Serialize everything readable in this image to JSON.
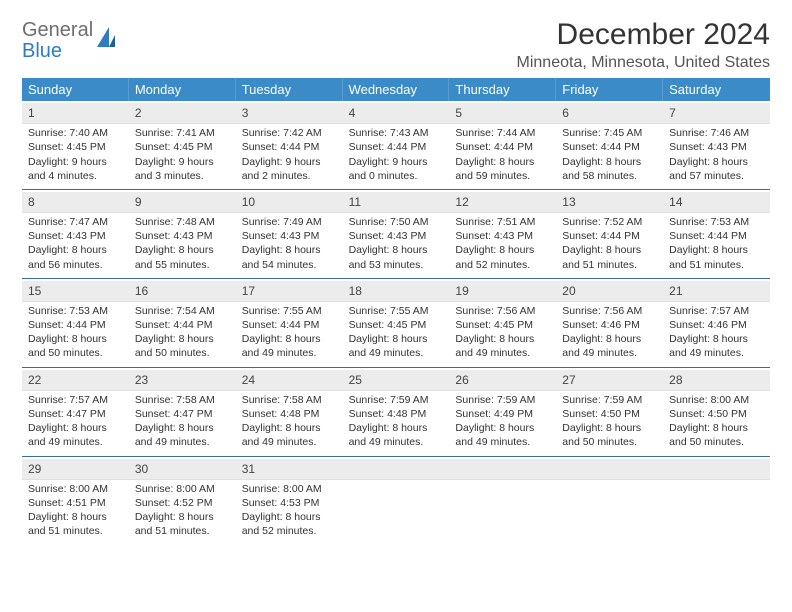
{
  "logo": {
    "line1": "General",
    "line2": "Blue"
  },
  "title": "December 2024",
  "location": "Minneota, Minnesota, United States",
  "dow": [
    "Sunday",
    "Monday",
    "Tuesday",
    "Wednesday",
    "Thursday",
    "Friday",
    "Saturday"
  ],
  "colors": {
    "header_bg": "#3b8bc8",
    "header_text": "#ffffff",
    "daynum_bg": "#ececec",
    "rule": "#3b6e9a",
    "logo_gray": "#6e6e6e",
    "logo_blue": "#2e7cc2"
  },
  "weeks": [
    [
      {
        "n": "1",
        "sr": "7:40 AM",
        "ss": "4:45 PM",
        "dl": "9 hours and 4 minutes."
      },
      {
        "n": "2",
        "sr": "7:41 AM",
        "ss": "4:45 PM",
        "dl": "9 hours and 3 minutes."
      },
      {
        "n": "3",
        "sr": "7:42 AM",
        "ss": "4:44 PM",
        "dl": "9 hours and 2 minutes."
      },
      {
        "n": "4",
        "sr": "7:43 AM",
        "ss": "4:44 PM",
        "dl": "9 hours and 0 minutes."
      },
      {
        "n": "5",
        "sr": "7:44 AM",
        "ss": "4:44 PM",
        "dl": "8 hours and 59 minutes."
      },
      {
        "n": "6",
        "sr": "7:45 AM",
        "ss": "4:44 PM",
        "dl": "8 hours and 58 minutes."
      },
      {
        "n": "7",
        "sr": "7:46 AM",
        "ss": "4:43 PM",
        "dl": "8 hours and 57 minutes."
      }
    ],
    [
      {
        "n": "8",
        "sr": "7:47 AM",
        "ss": "4:43 PM",
        "dl": "8 hours and 56 minutes."
      },
      {
        "n": "9",
        "sr": "7:48 AM",
        "ss": "4:43 PM",
        "dl": "8 hours and 55 minutes."
      },
      {
        "n": "10",
        "sr": "7:49 AM",
        "ss": "4:43 PM",
        "dl": "8 hours and 54 minutes."
      },
      {
        "n": "11",
        "sr": "7:50 AM",
        "ss": "4:43 PM",
        "dl": "8 hours and 53 minutes."
      },
      {
        "n": "12",
        "sr": "7:51 AM",
        "ss": "4:43 PM",
        "dl": "8 hours and 52 minutes."
      },
      {
        "n": "13",
        "sr": "7:52 AM",
        "ss": "4:44 PM",
        "dl": "8 hours and 51 minutes."
      },
      {
        "n": "14",
        "sr": "7:53 AM",
        "ss": "4:44 PM",
        "dl": "8 hours and 51 minutes."
      }
    ],
    [
      {
        "n": "15",
        "sr": "7:53 AM",
        "ss": "4:44 PM",
        "dl": "8 hours and 50 minutes."
      },
      {
        "n": "16",
        "sr": "7:54 AM",
        "ss": "4:44 PM",
        "dl": "8 hours and 50 minutes."
      },
      {
        "n": "17",
        "sr": "7:55 AM",
        "ss": "4:44 PM",
        "dl": "8 hours and 49 minutes."
      },
      {
        "n": "18",
        "sr": "7:55 AM",
        "ss": "4:45 PM",
        "dl": "8 hours and 49 minutes."
      },
      {
        "n": "19",
        "sr": "7:56 AM",
        "ss": "4:45 PM",
        "dl": "8 hours and 49 minutes."
      },
      {
        "n": "20",
        "sr": "7:56 AM",
        "ss": "4:46 PM",
        "dl": "8 hours and 49 minutes."
      },
      {
        "n": "21",
        "sr": "7:57 AM",
        "ss": "4:46 PM",
        "dl": "8 hours and 49 minutes."
      }
    ],
    [
      {
        "n": "22",
        "sr": "7:57 AM",
        "ss": "4:47 PM",
        "dl": "8 hours and 49 minutes."
      },
      {
        "n": "23",
        "sr": "7:58 AM",
        "ss": "4:47 PM",
        "dl": "8 hours and 49 minutes."
      },
      {
        "n": "24",
        "sr": "7:58 AM",
        "ss": "4:48 PM",
        "dl": "8 hours and 49 minutes."
      },
      {
        "n": "25",
        "sr": "7:59 AM",
        "ss": "4:48 PM",
        "dl": "8 hours and 49 minutes."
      },
      {
        "n": "26",
        "sr": "7:59 AM",
        "ss": "4:49 PM",
        "dl": "8 hours and 49 minutes."
      },
      {
        "n": "27",
        "sr": "7:59 AM",
        "ss": "4:50 PM",
        "dl": "8 hours and 50 minutes."
      },
      {
        "n": "28",
        "sr": "8:00 AM",
        "ss": "4:50 PM",
        "dl": "8 hours and 50 minutes."
      }
    ],
    [
      {
        "n": "29",
        "sr": "8:00 AM",
        "ss": "4:51 PM",
        "dl": "8 hours and 51 minutes."
      },
      {
        "n": "30",
        "sr": "8:00 AM",
        "ss": "4:52 PM",
        "dl": "8 hours and 51 minutes."
      },
      {
        "n": "31",
        "sr": "8:00 AM",
        "ss": "4:53 PM",
        "dl": "8 hours and 52 minutes."
      },
      {
        "empty": true
      },
      {
        "empty": true
      },
      {
        "empty": true
      },
      {
        "empty": true
      }
    ]
  ],
  "labels": {
    "sunrise": "Sunrise: ",
    "sunset": "Sunset: ",
    "daylight": "Daylight: "
  }
}
